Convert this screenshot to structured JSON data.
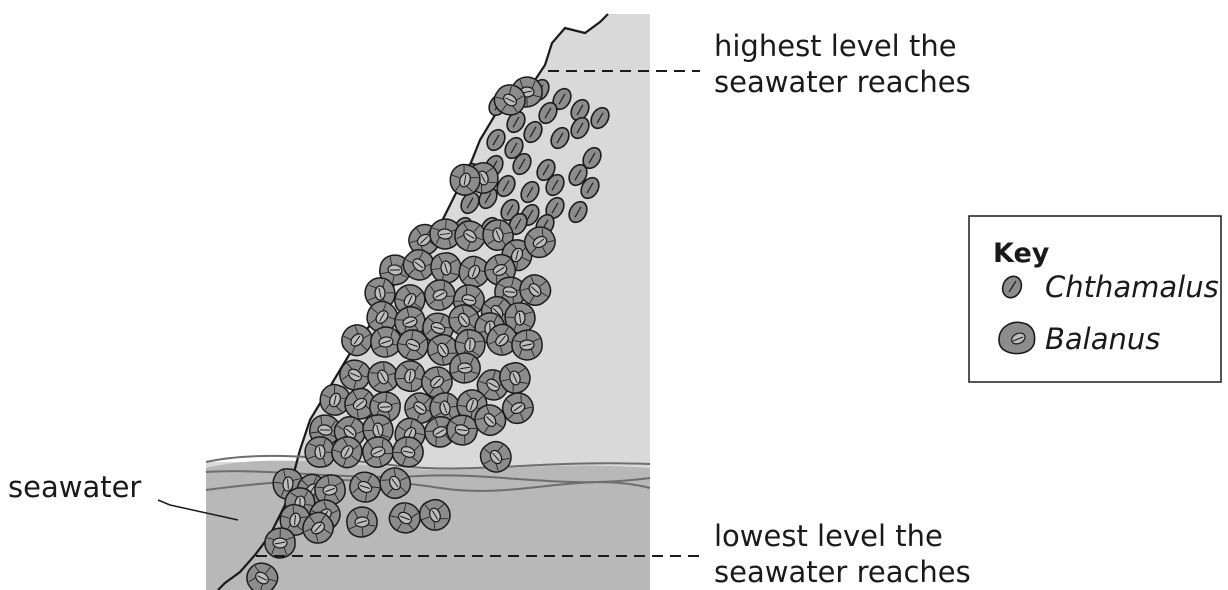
{
  "labels": {
    "seawater": "seawater",
    "high_level_line1": "highest level the",
    "high_level_line2": "seawater reaches",
    "low_level_line1": "lowest level the",
    "low_level_line2": "seawater reaches"
  },
  "key": {
    "title": "Key",
    "items": [
      {
        "label": "Chthamalus",
        "icon": "chthamalus-icon"
      },
      {
        "label": "Balanus",
        "icon": "balanus-icon"
      }
    ]
  },
  "colors": {
    "rock": "#d9d9d9",
    "seawater": "#b8b8b8",
    "barnacle": "#8c8c8c",
    "outline": "#1a1a1a",
    "wave": "#6e6e6e"
  }
}
